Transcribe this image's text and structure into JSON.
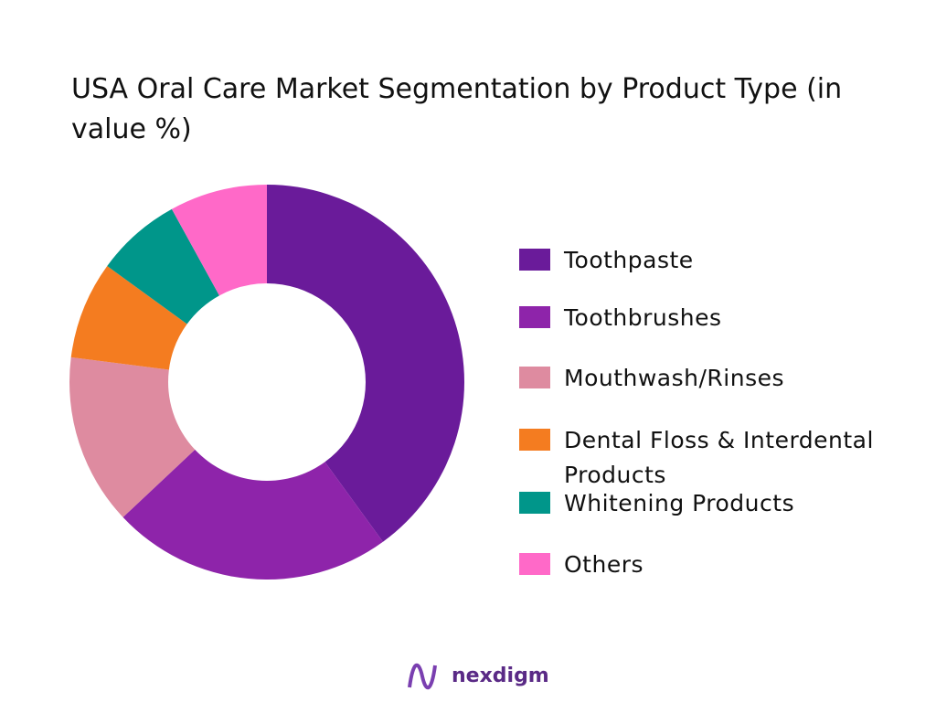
{
  "chart_data": {
    "type": "donut",
    "title": "USA Oral Care Market Segmentation by Product Type (in value %)",
    "categories": [
      "Toothpaste",
      "Toothbrushes",
      "Mouthwash/Rinses",
      "Dental Floss & Interdental Products",
      "Whitening Products",
      "Others"
    ],
    "values": [
      40,
      23,
      14,
      8,
      7,
      8
    ],
    "colors": [
      "#6a1b9a",
      "#8e24aa",
      "#de8ba0",
      "#f47c20",
      "#00968a",
      "#ff69c8"
    ]
  },
  "brand": "nexdigm"
}
